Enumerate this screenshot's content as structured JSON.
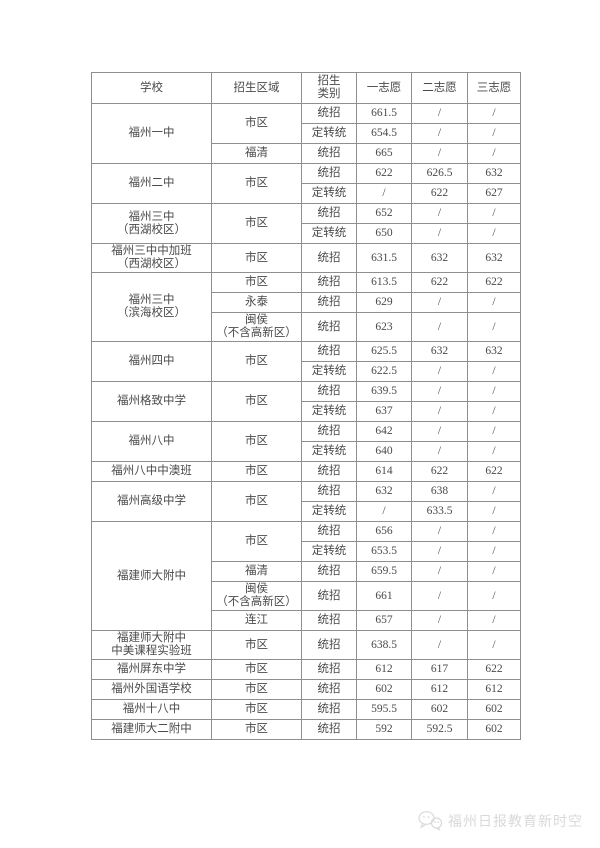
{
  "table": {
    "headers": [
      "学校",
      "招生区域",
      "招生\n类别",
      "一志愿",
      "二志愿",
      "三志愿"
    ],
    "border_color": "#8f8f8f",
    "text_color": "#4a4a4a",
    "groups": [
      {
        "school": "福州一中",
        "areas": [
          {
            "area": "市区",
            "rows": [
              [
                "统招",
                "661.5",
                "/",
                "/"
              ],
              [
                "定转统",
                "654.5",
                "/",
                "/"
              ]
            ]
          },
          {
            "area": "福清",
            "rows": [
              [
                "统招",
                "665",
                "/",
                "/"
              ]
            ]
          }
        ]
      },
      {
        "school": "福州二中",
        "areas": [
          {
            "area": "市区",
            "rows": [
              [
                "统招",
                "622",
                "626.5",
                "632"
              ],
              [
                "定转统",
                "/",
                "622",
                "627"
              ]
            ]
          }
        ]
      },
      {
        "school": "福州三中\n（西湖校区）",
        "areas": [
          {
            "area": "市区",
            "rows": [
              [
                "统招",
                "652",
                "/",
                "/"
              ],
              [
                "定转统",
                "650",
                "/",
                "/"
              ]
            ]
          }
        ]
      },
      {
        "school": "福州三中中加班\n（西湖校区）",
        "areas": [
          {
            "area": "市区",
            "rows": [
              [
                "统招",
                "631.5",
                "632",
                "632"
              ]
            ]
          }
        ]
      },
      {
        "school": "福州三中\n（滨海校区）",
        "areas": [
          {
            "area": "市区",
            "rows": [
              [
                "统招",
                "613.5",
                "622",
                "622"
              ]
            ]
          },
          {
            "area": "永泰",
            "rows": [
              [
                "统招",
                "629",
                "/",
                "/"
              ]
            ]
          },
          {
            "area": "闽侯\n（不含高新区）",
            "rows": [
              [
                "统招",
                "623",
                "/",
                "/"
              ]
            ]
          }
        ]
      },
      {
        "school": "福州四中",
        "areas": [
          {
            "area": "市区",
            "rows": [
              [
                "统招",
                "625.5",
                "632",
                "632"
              ],
              [
                "定转统",
                "622.5",
                "/",
                "/"
              ]
            ]
          }
        ]
      },
      {
        "school": "福州格致中学",
        "areas": [
          {
            "area": "市区",
            "rows": [
              [
                "统招",
                "639.5",
                "/",
                "/"
              ],
              [
                "定转统",
                "637",
                "/",
                "/"
              ]
            ]
          }
        ]
      },
      {
        "school": "福州八中",
        "areas": [
          {
            "area": "市区",
            "rows": [
              [
                "统招",
                "642",
                "/",
                "/"
              ],
              [
                "定转统",
                "640",
                "/",
                "/"
              ]
            ]
          }
        ]
      },
      {
        "school": "福州八中中澳班",
        "areas": [
          {
            "area": "市区",
            "rows": [
              [
                "统招",
                "614",
                "622",
                "622"
              ]
            ]
          }
        ]
      },
      {
        "school": "福州高级中学",
        "areas": [
          {
            "area": "市区",
            "rows": [
              [
                "统招",
                "632",
                "638",
                "/"
              ],
              [
                "定转统",
                "/",
                "633.5",
                "/"
              ]
            ]
          }
        ]
      },
      {
        "school": "福建师大附中",
        "areas": [
          {
            "area": "市区",
            "rows": [
              [
                "统招",
                "656",
                "/",
                "/"
              ],
              [
                "定转统",
                "653.5",
                "/",
                "/"
              ]
            ]
          },
          {
            "area": "福清",
            "rows": [
              [
                "统招",
                "659.5",
                "/",
                "/"
              ]
            ]
          },
          {
            "area": "闽侯\n（不含高新区）",
            "rows": [
              [
                "统招",
                "661",
                "/",
                "/"
              ]
            ]
          },
          {
            "area": "连江",
            "rows": [
              [
                "统招",
                "657",
                "/",
                "/"
              ]
            ]
          }
        ]
      },
      {
        "school": "福建师大附中\n中美课程实验班",
        "areas": [
          {
            "area": "市区",
            "rows": [
              [
                "统招",
                "638.5",
                "/",
                "/"
              ]
            ]
          }
        ]
      },
      {
        "school": "福州屏东中学",
        "areas": [
          {
            "area": "市区",
            "rows": [
              [
                "统招",
                "612",
                "617",
                "622"
              ]
            ]
          }
        ]
      },
      {
        "school": "福州外国语学校",
        "areas": [
          {
            "area": "市区",
            "rows": [
              [
                "统招",
                "602",
                "612",
                "612"
              ]
            ]
          }
        ]
      },
      {
        "school": "福州十八中",
        "areas": [
          {
            "area": "市区",
            "rows": [
              [
                "统招",
                "595.5",
                "602",
                "602"
              ]
            ]
          }
        ]
      },
      {
        "school": "福建师大二附中",
        "areas": [
          {
            "area": "市区",
            "rows": [
              [
                "统招",
                "592",
                "592.5",
                "602"
              ]
            ]
          }
        ]
      }
    ]
  },
  "footer": {
    "watermark": "福州日报教育新时空",
    "icon": "wechat-bubbles-icon",
    "color": "#d9d9d9"
  }
}
